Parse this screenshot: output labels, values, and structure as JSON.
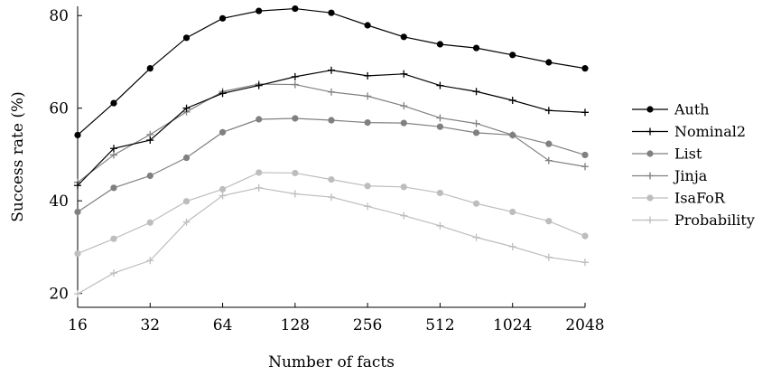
{
  "chart_data": {
    "type": "line",
    "title": "",
    "xlabel": "Number of facts",
    "ylabel": "Success rate (%)",
    "x_scale": "log2",
    "xlim": [
      16,
      2048
    ],
    "ylim": [
      17,
      82
    ],
    "x": [
      16,
      22.6,
      32,
      45.3,
      64,
      90.5,
      128,
      181,
      256,
      362,
      512,
      724,
      1024,
      1448,
      2048
    ],
    "xticks": [
      16,
      32,
      64,
      128,
      256,
      512,
      1024,
      2048
    ],
    "xtick_labels": [
      "16",
      "32",
      "64",
      "128",
      "256",
      "512",
      "1024",
      "2048"
    ],
    "yticks": [
      20,
      40,
      60,
      80
    ],
    "ytick_labels": [
      "20",
      "40",
      "60",
      "80"
    ],
    "grid": false,
    "legend_position": "right",
    "series": [
      {
        "name": "Auth",
        "color": "#000000",
        "marker": "dot",
        "values": [
          54.2,
          61.1,
          68.6,
          75.2,
          79.4,
          81.0,
          81.5,
          80.6,
          77.9,
          75.4,
          73.8,
          73.0,
          71.5,
          69.9,
          68.6
        ]
      },
      {
        "name": "Nominal2",
        "color": "#000000",
        "marker": "plus",
        "values": [
          43.3,
          51.3,
          53.1,
          60.0,
          63.2,
          64.9,
          66.8,
          68.2,
          67.0,
          67.4,
          64.9,
          63.6,
          61.7,
          59.5,
          59.1
        ]
      },
      {
        "name": "List",
        "color": "#808080",
        "marker": "dot",
        "values": [
          37.6,
          42.8,
          45.4,
          49.3,
          54.8,
          57.6,
          57.8,
          57.4,
          56.9,
          56.8,
          56.0,
          54.7,
          54.2,
          52.3,
          49.9
        ]
      },
      {
        "name": "Jinja",
        "color": "#808080",
        "marker": "plus",
        "values": [
          44.0,
          49.9,
          54.3,
          59.2,
          63.6,
          65.2,
          65.1,
          63.5,
          62.6,
          60.5,
          57.9,
          56.7,
          54.2,
          48.7,
          47.4
        ]
      },
      {
        "name": "IsaFoR",
        "color": "#bdbdbd",
        "marker": "dot",
        "values": [
          28.6,
          31.8,
          35.3,
          39.9,
          42.5,
          46.1,
          46.0,
          44.6,
          43.2,
          43.0,
          41.7,
          39.4,
          37.6,
          35.6,
          32.4
        ]
      },
      {
        "name": "Probability",
        "color": "#bdbdbd",
        "marker": "plus",
        "values": [
          19.9,
          24.4,
          27.1,
          35.4,
          41.1,
          42.8,
          41.5,
          40.8,
          38.8,
          36.8,
          34.6,
          32.1,
          30.1,
          27.8,
          26.7
        ]
      }
    ]
  }
}
